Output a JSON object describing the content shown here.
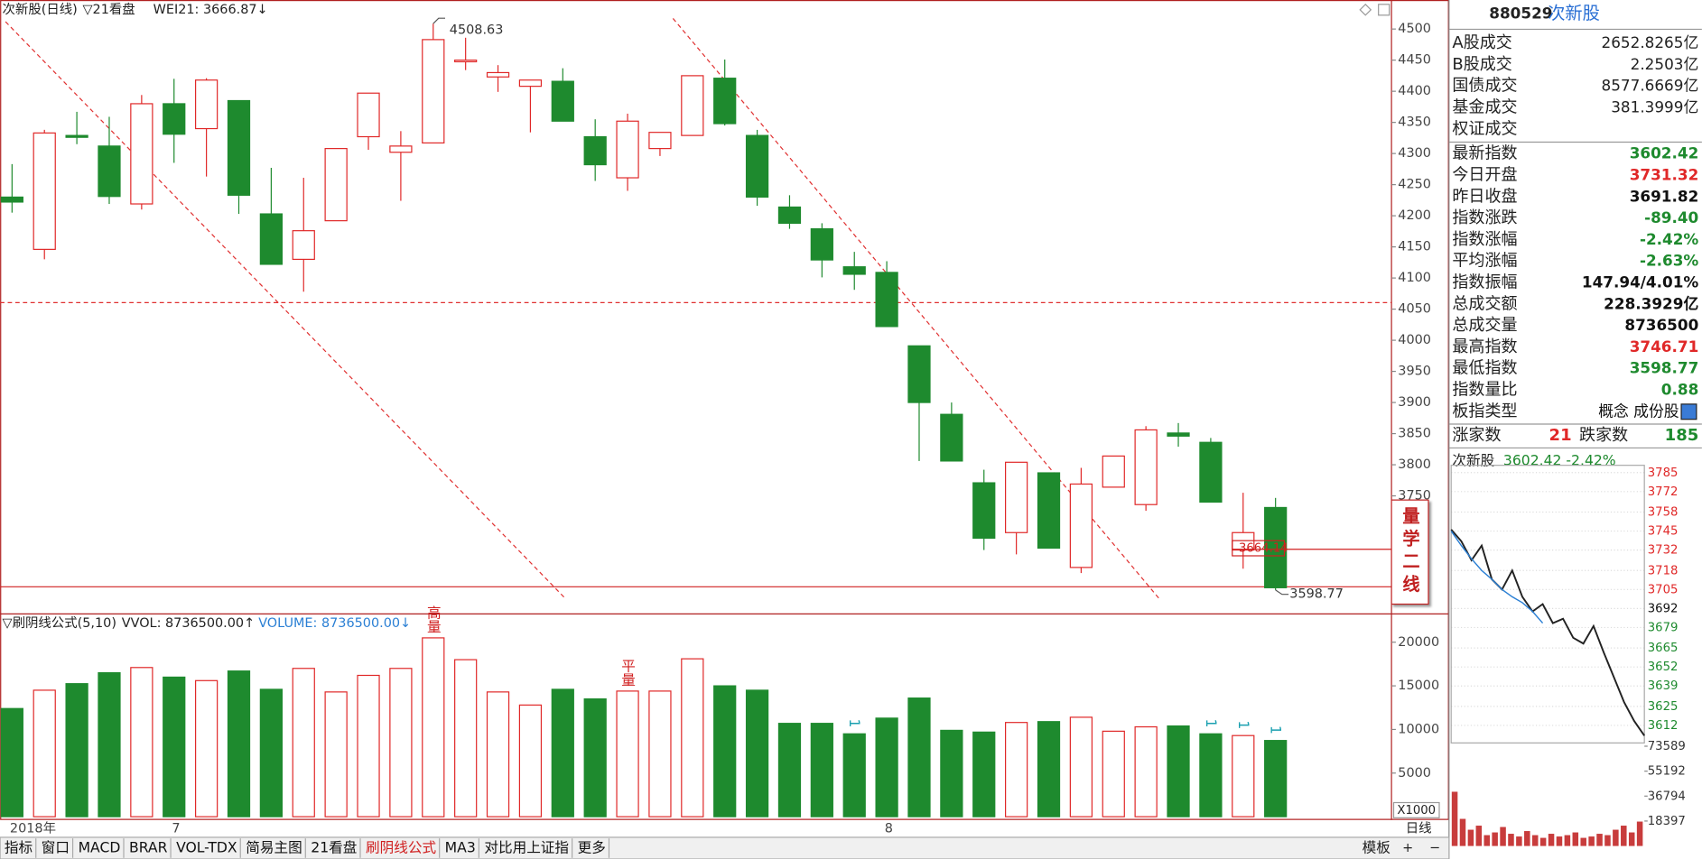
{
  "chart_data": [
    {
      "type": "candlestick",
      "title": "次新股(日线)",
      "indicator": "▽21看盘",
      "readout": "WEI21: 3666.87↓",
      "categories": [
        "2018年",
        null,
        null,
        null,
        null,
        "7",
        null,
        null,
        null,
        null,
        null,
        null,
        null,
        null,
        null,
        null,
        null,
        null,
        null,
        null,
        null,
        null,
        null,
        null,
        null,
        null,
        null,
        "8",
        null,
        null,
        null,
        null,
        null,
        null,
        null,
        null,
        null,
        null,
        null,
        null
      ],
      "open": [
        4230,
        4146,
        4329,
        4312,
        4219,
        4380,
        4340,
        4385,
        4203,
        4130,
        4192,
        4327,
        4302,
        4317,
        4448,
        4423,
        4408,
        4416,
        4327,
        4261,
        4308,
        4329,
        4421,
        4329,
        4214,
        4179,
        4118,
        4109,
        3991,
        3881,
        3771,
        3691,
        3787,
        3635,
        3764,
        3736,
        3851,
        3836,
        3663,
        3731.32
      ],
      "high": [
        4283,
        4338,
        4367,
        4359,
        4394,
        4420,
        4421,
        4385,
        4277,
        4261,
        4308,
        4397,
        4336,
        4508.63,
        4486,
        4442,
        4418,
        4437,
        4355,
        4364,
        4334,
        4425,
        4451,
        4338,
        4233,
        4188,
        4142,
        4127,
        3991,
        3900,
        3792,
        3804,
        3787,
        3795,
        3814,
        3862,
        3867,
        3843,
        3755,
        3746.71
      ],
      "low": [
        4205,
        4130,
        4315,
        4219,
        4210,
        4285,
        4263,
        4203,
        4122,
        4078,
        4192,
        4306,
        4224,
        4317,
        4434,
        4399,
        4334,
        4352,
        4256,
        4240,
        4296,
        4329,
        4345,
        4216,
        4179,
        4101,
        4081,
        4022,
        3806,
        3806,
        3663,
        3656,
        3666,
        3626,
        3764,
        3726,
        3829,
        3740,
        3633,
        3598.77
      ],
      "close": [
        4222,
        4333,
        4326,
        4231,
        4380,
        4331,
        4418,
        4233,
        4122,
        4176,
        4308,
        4397,
        4312,
        4483,
        4450,
        4430,
        4418,
        4352,
        4282,
        4352,
        4334,
        4425,
        4348,
        4230,
        4188,
        4129,
        4106,
        4022,
        3900,
        3806,
        3682,
        3804,
        3666,
        3769,
        3814,
        3856,
        3846,
        3740,
        3691,
        3602.42
      ],
      "up_color": "#e02828",
      "down_color": "#1e8a2e",
      "ylim": [
        3597,
        4517
      ],
      "yticks": [
        3750,
        3800,
        3850,
        3900,
        3950,
        4000,
        4050,
        4100,
        4150,
        4200,
        4250,
        4300,
        4350,
        4400,
        4450,
        4500
      ],
      "level": 3664.14,
      "overlay_label": "量学二线"
    },
    {
      "type": "bar",
      "title": "▽刷阴线公式(5,10)",
      "readouts": [
        "VVOL: 8736500.00↑",
        "VOLUME: 8736500.00↓"
      ],
      "unit_label": "X1000",
      "values": [
        12400,
        14500,
        15250,
        16500,
        17100,
        16000,
        15600,
        16700,
        14600,
        17000,
        14300,
        16200,
        17000,
        20500,
        18000,
        14300,
        12800,
        14600,
        13500,
        14400,
        14400,
        18100,
        15000,
        14500,
        10700,
        10700,
        9500,
        11300,
        13600,
        9900,
        9700,
        10800,
        10900,
        11400,
        9800,
        10300,
        10400,
        9500,
        9300,
        8736.5
      ],
      "value_tags": [
        null,
        null,
        null,
        null,
        null,
        null,
        null,
        null,
        null,
        null,
        null,
        null,
        null,
        "高量",
        null,
        null,
        null,
        null,
        null,
        "平量",
        null,
        null,
        null,
        null,
        null,
        null,
        "1",
        null,
        null,
        null,
        null,
        null,
        null,
        null,
        null,
        null,
        null,
        "1",
        "1",
        "1"
      ],
      "up_color": "#e02828",
      "down_color": "#1e8a2e",
      "ylim": [
        0,
        23000
      ],
      "yticks": [
        5000,
        10000,
        15000,
        20000
      ]
    },
    {
      "type": "line",
      "title": "次新股",
      "readout": "3602.42 -2.42%",
      "series": [
        {
          "name": "price",
          "color": "#222222",
          "values": [
            3746,
            3738,
            3725,
            3735,
            3712,
            3705,
            3718,
            3700,
            3690,
            3695,
            3682,
            3685,
            3672,
            3668,
            3680,
            3662,
            3645,
            3628,
            3615,
            3605
          ]
        },
        {
          "name": "average",
          "color": "#2a7fd4",
          "values": [
            3745,
            3735,
            3726,
            3718,
            3712,
            3705,
            3700,
            3696,
            3690,
            3682
          ]
        }
      ],
      "ylim": [
        3600,
        3790
      ],
      "yticks": [
        3785,
        3772,
        3758,
        3745,
        3732,
        3718,
        3705,
        3692,
        3679,
        3665,
        3652,
        3639,
        3625,
        3612
      ]
    },
    {
      "type": "bar",
      "color": "#c83c3c",
      "values": [
        40000,
        20000,
        12000,
        15000,
        8000,
        10000,
        14000,
        9000,
        7000,
        11000,
        8000,
        6000,
        9000,
        7000,
        8000,
        10000,
        6000,
        7000,
        9000,
        8000,
        12000,
        15000,
        10000,
        18000
      ],
      "ylim": [
        0,
        73589
      ],
      "yticks": [
        18397,
        36794,
        55192,
        73589
      ]
    }
  ],
  "panel": {
    "code": "880529",
    "name": "次新股",
    "turnover": [
      {
        "label": "A股成交",
        "value": "2652.8265亿"
      },
      {
        "label": "B股成交",
        "value": "2.2503亿"
      },
      {
        "label": "国债成交",
        "value": "8577.6669亿"
      },
      {
        "label": "基金成交",
        "value": "381.3999亿"
      },
      {
        "label": "权证成交"
      }
    ],
    "stats": [
      {
        "label": "最新指数",
        "value": 3602.42,
        "color": "#1e8a2e"
      },
      {
        "label": "今日开盘",
        "value": 3731.32,
        "color": "#e02828"
      },
      {
        "label": "昨日收盘",
        "value": 3691.82,
        "color": "#111111"
      },
      {
        "label": "指数涨跌",
        "value": "-89.40",
        "color": "#1e8a2e"
      },
      {
        "label": "指数涨幅",
        "value": "-2.42%",
        "color": "#1e8a2e"
      },
      {
        "label": "平均涨幅",
        "value": "-2.63%",
        "color": "#1e8a2e"
      },
      {
        "label": "指数振幅",
        "value": "147.94/4.01%",
        "color": "#111111"
      },
      {
        "label": "总成交额",
        "value": "228.3929亿",
        "color": "#111111"
      },
      {
        "label": "总成交量",
        "value": 8736500,
        "color": "#111111"
      },
      {
        "label": "最高指数",
        "value": 3746.71,
        "color": "#e02828"
      },
      {
        "label": "最低指数",
        "value": 3598.77,
        "color": "#1e8a2e"
      },
      {
        "label": "指数量比",
        "value": 0.88,
        "color": "#1e8a2e"
      },
      {
        "label": "板指类型",
        "value": "概念 成份股",
        "color": "#111111"
      }
    ],
    "breadth": {
      "up_label": "涨家数",
      "up": 21,
      "down_label": "跌家数",
      "down": 185
    }
  },
  "tabs": [
    "指标",
    "窗口",
    "MACD",
    "BRAR",
    "VOL-TDX",
    "简易主图",
    "21看盘",
    "刷阴线公式",
    "MA3",
    "对比用上证指",
    "更多"
  ],
  "active_tab": 7,
  "period": "日线",
  "template": "模板"
}
